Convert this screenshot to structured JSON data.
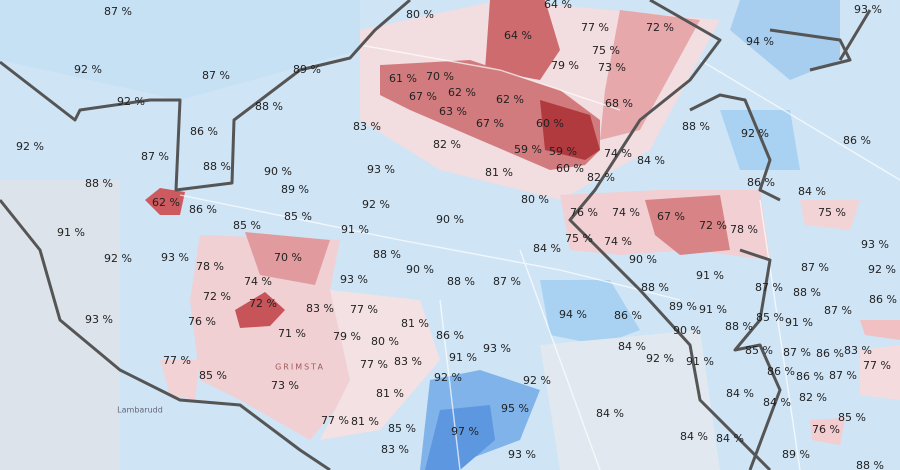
{
  "labels": [
    "87 %",
    "80 %",
    "64 %",
    "77 %",
    "72 %",
    "93 %",
    "64 %",
    "94 %",
    "92 %",
    "87 %",
    "89 %",
    "75 %",
    "79 %",
    "73 %",
    "92 %",
    "88 %",
    "61 %",
    "70 %",
    "67 %",
    "62 %",
    "63 %",
    "62 %",
    "68 %",
    "67 %",
    "60 %",
    "83 %",
    "86 %",
    "88 %",
    "92 %",
    "86 %",
    "92 %",
    "87 %",
    "82 %",
    "59 %",
    "59 %",
    "74 %",
    "84 %",
    "88 %",
    "90 %",
    "93 %",
    "81 %",
    "60 %",
    "82 %",
    "88 %",
    "89 %",
    "86 %",
    "84 %",
    "62 %",
    "86 %",
    "92 %",
    "80 %",
    "76 %",
    "74 %",
    "67 %",
    "75 %",
    "85 %",
    "90 %",
    "85 %",
    "91 %",
    "91 %",
    "72 %",
    "78 %",
    "84 %",
    "75 %",
    "74 %",
    "93 %",
    "70 %",
    "92 %",
    "93 %",
    "88 %",
    "90 %",
    "90 %",
    "78 %",
    "87 %",
    "92 %",
    "91 %",
    "88 %",
    "87 %",
    "74 %",
    "93 %",
    "87 %",
    "88 %",
    "72 %",
    "88 %",
    "86 %",
    "72 %",
    "89 %",
    "91 %",
    "83 %",
    "77 %",
    "94 %",
    "86 %",
    "87 %",
    "85 %",
    "91 %",
    "93 %",
    "76 %",
    "81 %",
    "88 %",
    "90 %",
    "71 %",
    "79 %",
    "86 %",
    "80 %",
    "93 %",
    "84 %",
    "85 %",
    "87 %",
    "86 %",
    "83 %",
    "91 %",
    "92 %",
    "91 %",
    "77 %",
    "77 %",
    "83 %",
    "86 %",
    "86 %",
    "87 %",
    "77 %",
    "85 %",
    "92 %",
    "92 %",
    "73 %",
    "81 %",
    "84 %",
    "84 %",
    "82 %",
    "95 %",
    "84 %",
    "85 %",
    "77 %",
    "81 %",
    "85 %",
    "97 %",
    "76 %",
    "84 %",
    "84 %",
    "83 %",
    "93 %",
    "89 %",
    "88 %"
  ],
  "places": [
    "GRIMSTA",
    "Lambarudd"
  ]
}
